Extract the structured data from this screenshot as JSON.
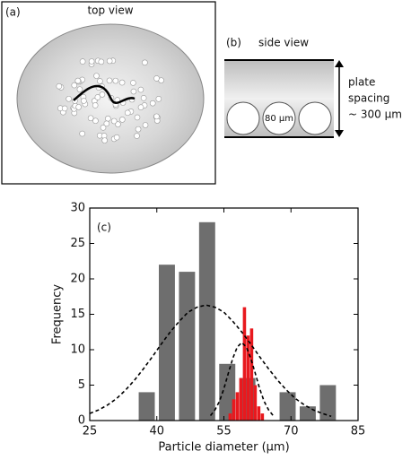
{
  "panel_a": {
    "label": "(a)",
    "title": "top view"
  },
  "panel_b": {
    "label": "(b)",
    "title": "side view",
    "particle_label": "80 µm",
    "spacing_label": [
      "plate",
      "spacing",
      "~ 300 µm"
    ]
  },
  "chart_data": {
    "type": "histogram",
    "annotation": "(c)",
    "xlabel": "Particle diameter (µm)",
    "ylabel": "Frequency",
    "xlim": [
      25,
      85
    ],
    "xticks": [
      25,
      40,
      55,
      70,
      85
    ],
    "ylim": [
      0,
      30
    ],
    "yticks": [
      0,
      5,
      10,
      15,
      20,
      25,
      30
    ],
    "histograms": [
      {
        "color": "#6e6e6e",
        "bins": [
          35.5,
          40,
          44.5,
          49,
          53.5,
          58,
          62.5,
          67,
          71.5,
          76,
          80.5
        ],
        "counts": [
          4,
          22,
          21,
          28,
          8,
          6,
          0,
          4,
          2,
          5
        ]
      },
      {
        "color": "#e8191e",
        "bins": [
          56,
          56.8,
          57.6,
          58.4,
          59.2,
          60,
          60.8,
          61.6,
          62.4,
          63.2,
          64
        ],
        "counts": [
          1,
          3,
          4,
          6,
          16,
          12,
          13,
          5,
          2,
          1
        ]
      }
    ],
    "curves": [
      {
        "color": "#000000",
        "x": [
          25,
          27,
          29,
          31,
          33,
          35,
          37,
          39,
          41,
          43,
          45,
          47,
          49,
          51,
          53,
          55,
          57,
          59,
          61,
          63,
          65,
          67,
          69,
          71,
          73,
          75,
          77,
          79
        ],
        "values": [
          1.0,
          1.5,
          2.2,
          3.1,
          4.3,
          5.7,
          7.3,
          9.0,
          10.8,
          12.5,
          14.0,
          15.3,
          16.0,
          16.3,
          16.0,
          15.3,
          14.0,
          12.5,
          10.8,
          9.0,
          7.3,
          5.7,
          4.3,
          3.1,
          2.2,
          1.5,
          1.0,
          0.6
        ]
      },
      {
        "color": "#000000",
        "x": [
          52,
          53,
          54,
          55,
          56,
          57,
          58,
          59,
          60,
          61,
          62,
          63,
          64,
          65,
          66
        ],
        "values": [
          0.7,
          1.5,
          2.7,
          4.5,
          6.7,
          8.8,
          10.4,
          11,
          10.4,
          8.8,
          6.7,
          4.5,
          2.7,
          1.5,
          0.7
        ]
      }
    ]
  }
}
